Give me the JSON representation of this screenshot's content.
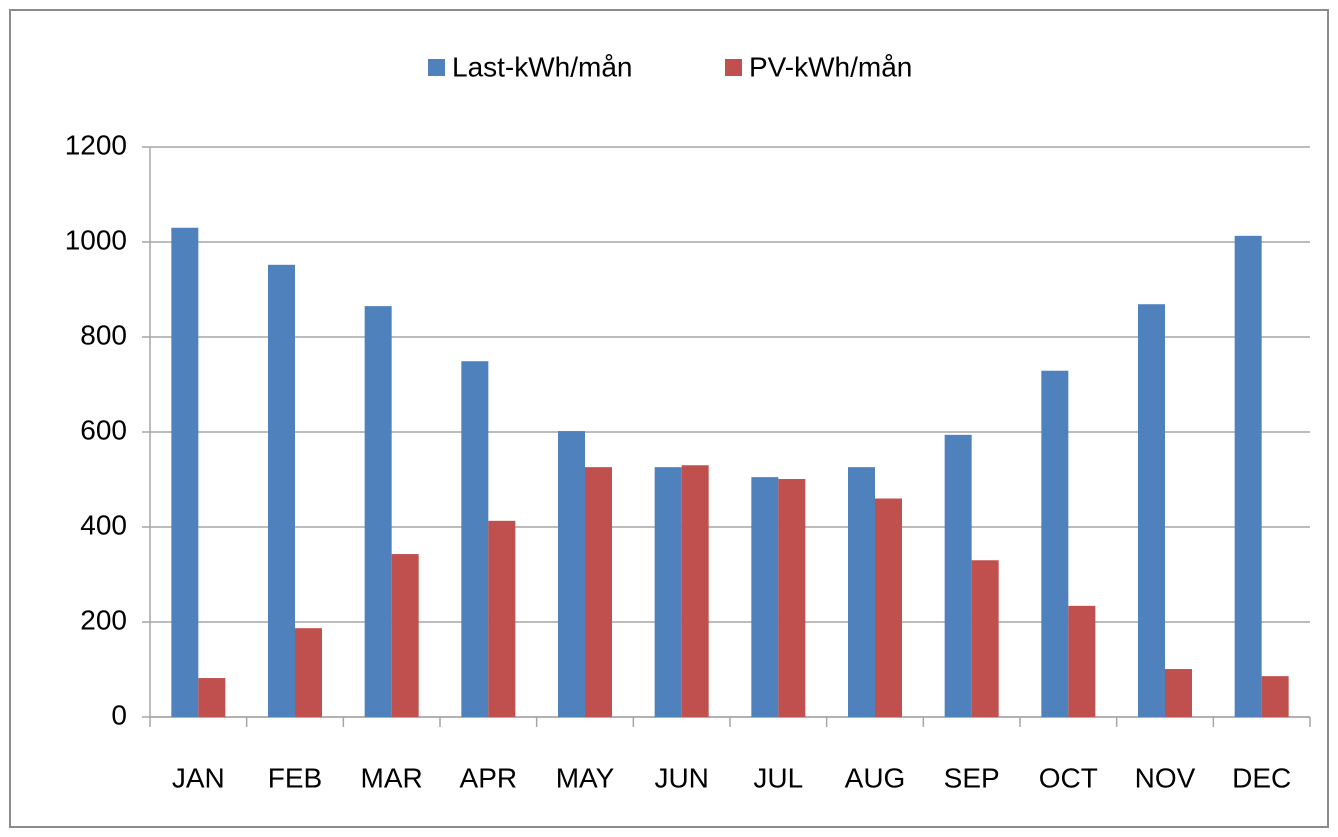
{
  "chart_data": {
    "type": "bar",
    "categories": [
      "JAN",
      "FEB",
      "MAR",
      "APR",
      "MAY",
      "JUN",
      "JUL",
      "AUG",
      "SEP",
      "OCT",
      "NOV",
      "DEC"
    ],
    "series": [
      {
        "name": "Last-kWh/mån",
        "color": "#4f81bd",
        "values": [
          1030,
          952,
          865,
          749,
          602,
          526,
          505,
          526,
          594,
          729,
          869,
          1013
        ]
      },
      {
        "name": "PV-kWh/mån",
        "color": "#c0504d",
        "values": [
          82,
          187,
          343,
          413,
          526,
          530,
          501,
          460,
          330,
          234,
          101,
          86
        ]
      }
    ],
    "ylim": [
      0,
      1200
    ],
    "yticks": [
      0,
      200,
      400,
      600,
      800,
      1000,
      1200
    ],
    "grid": true,
    "legend": "top"
  }
}
